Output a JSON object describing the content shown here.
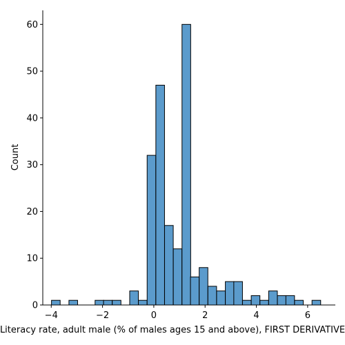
{
  "chart_data": {
    "type": "bar",
    "title": "",
    "xlabel": "Literacy rate, adult male (% of males ages 15 and above), FIRST DERIVATIVE",
    "ylabel": "Count",
    "xlim": [
      -4.33,
      7.08
    ],
    "ylim": [
      0,
      63
    ],
    "xticks": [
      -4,
      -2,
      0,
      2,
      4,
      6
    ],
    "yticks": [
      0,
      10,
      20,
      30,
      40,
      50,
      60
    ],
    "grid": false,
    "bin_width": 0.338,
    "bins": [
      {
        "x0": -3.99,
        "count": 1
      },
      {
        "x0": -3.31,
        "count": 1
      },
      {
        "x0": -2.29,
        "count": 1
      },
      {
        "x0": -1.96,
        "count": 1
      },
      {
        "x0": -1.62,
        "count": 1
      },
      {
        "x0": -0.94,
        "count": 3
      },
      {
        "x0": -0.6,
        "count": 1
      },
      {
        "x0": -0.26,
        "count": 32
      },
      {
        "x0": 0.08,
        "count": 47
      },
      {
        "x0": 0.42,
        "count": 17
      },
      {
        "x0": 0.76,
        "count": 12
      },
      {
        "x0": 1.1,
        "count": 60
      },
      {
        "x0": 1.43,
        "count": 6
      },
      {
        "x0": 1.77,
        "count": 8
      },
      {
        "x0": 2.11,
        "count": 4
      },
      {
        "x0": 2.45,
        "count": 3
      },
      {
        "x0": 2.79,
        "count": 5
      },
      {
        "x0": 3.12,
        "count": 5
      },
      {
        "x0": 3.46,
        "count": 1
      },
      {
        "x0": 3.8,
        "count": 2
      },
      {
        "x0": 4.14,
        "count": 1
      },
      {
        "x0": 4.48,
        "count": 3
      },
      {
        "x0": 4.82,
        "count": 2
      },
      {
        "x0": 5.15,
        "count": 2
      },
      {
        "x0": 5.49,
        "count": 1
      },
      {
        "x0": 6.17,
        "count": 1
      }
    ],
    "bar_color": "#5b9bcc",
    "edge_color": "#000000"
  }
}
